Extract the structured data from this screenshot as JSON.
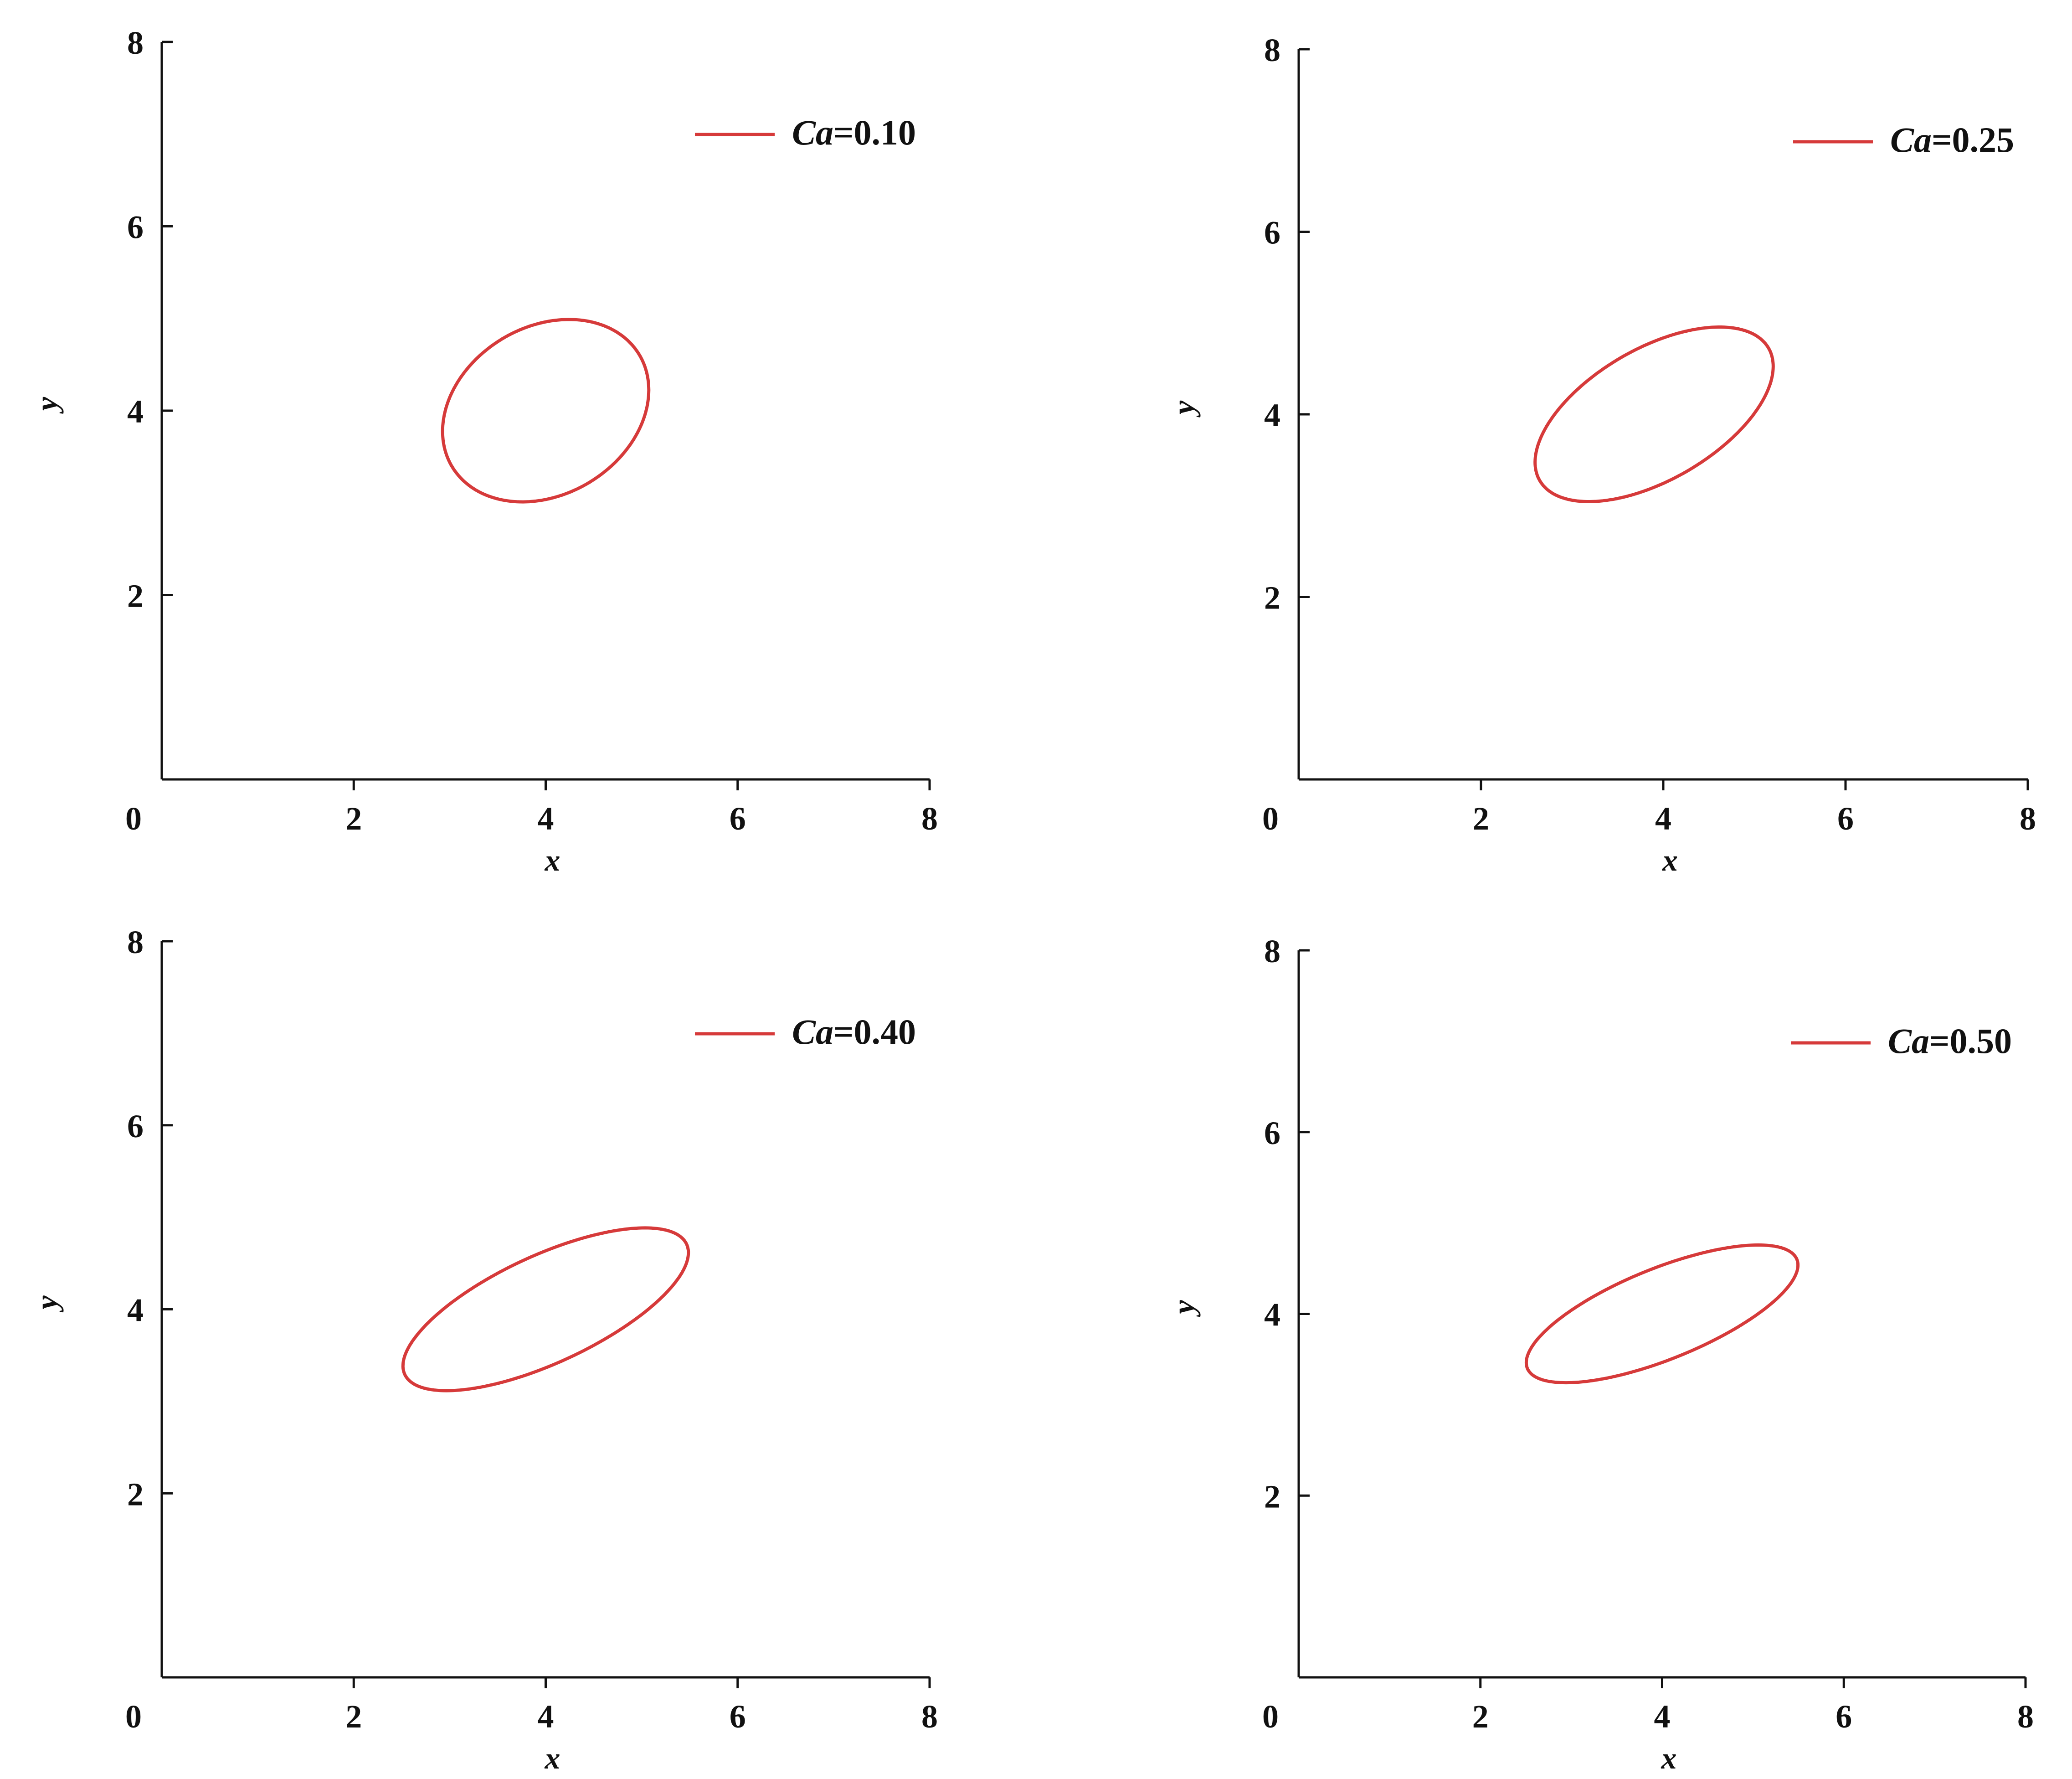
{
  "chart_data": [
    {
      "type": "line",
      "xlabel": "x",
      "ylabel": "y",
      "xlim": [
        0,
        8
      ],
      "ylim": [
        0,
        8
      ],
      "x_ticks": [
        "0",
        "2",
        "4",
        "6",
        "8"
      ],
      "y_ticks": [
        "2",
        "4",
        "6",
        "8"
      ],
      "legend_position": "top-right",
      "color": "#d63a3a",
      "series": [
        {
          "name_var": "Ca",
          "name_value": "=0.10",
          "shape": {
            "kind": "ellipse",
            "center": [
              4.0,
              4.0
            ],
            "semi_major": 1.15,
            "semi_minor": 0.9,
            "angle_deg": 35
          }
        }
      ]
    },
    {
      "type": "line",
      "xlabel": "x",
      "ylabel": "y",
      "xlim": [
        0,
        8
      ],
      "ylim": [
        0,
        8
      ],
      "x_ticks": [
        "0",
        "2",
        "4",
        "6",
        "8"
      ],
      "y_ticks": [
        "2",
        "4",
        "6",
        "8"
      ],
      "legend_position": "top-right",
      "color": "#d63a3a",
      "series": [
        {
          "name_var": "Ca",
          "name_value": "=0.25",
          "shape": {
            "kind": "ellipse",
            "center": [
              3.9,
              4.0
            ],
            "semi_major": 1.45,
            "semi_minor": 0.72,
            "angle_deg": 30
          }
        }
      ]
    },
    {
      "type": "line",
      "xlabel": "x",
      "ylabel": "y",
      "xlim": [
        0,
        8
      ],
      "ylim": [
        0,
        8
      ],
      "x_ticks": [
        "0",
        "2",
        "4",
        "6",
        "8"
      ],
      "y_ticks": [
        "2",
        "4",
        "6",
        "8"
      ],
      "legend_position": "top-right",
      "color": "#d63a3a",
      "series": [
        {
          "name_var": "Ca",
          "name_value": "=0.40",
          "shape": {
            "kind": "ellipse",
            "center": [
              4.0,
              4.0
            ],
            "semi_major": 1.63,
            "semi_minor": 0.58,
            "angle_deg": 26
          }
        }
      ]
    },
    {
      "type": "line",
      "xlabel": "x",
      "ylabel": "y",
      "xlim": [
        0,
        8
      ],
      "ylim": [
        0,
        8
      ],
      "x_ticks": [
        "0",
        "2",
        "4",
        "6",
        "8"
      ],
      "y_ticks": [
        "2",
        "4",
        "6",
        "8"
      ],
      "legend_position": "top-right",
      "color": "#d63a3a",
      "series": [
        {
          "name_var": "Ca",
          "name_value": "=0.50",
          "shape": {
            "kind": "ellipse",
            "center": [
              4.0,
              4.0
            ],
            "semi_major": 1.6,
            "semi_minor": 0.5,
            "angle_deg": 22
          }
        }
      ]
    }
  ]
}
